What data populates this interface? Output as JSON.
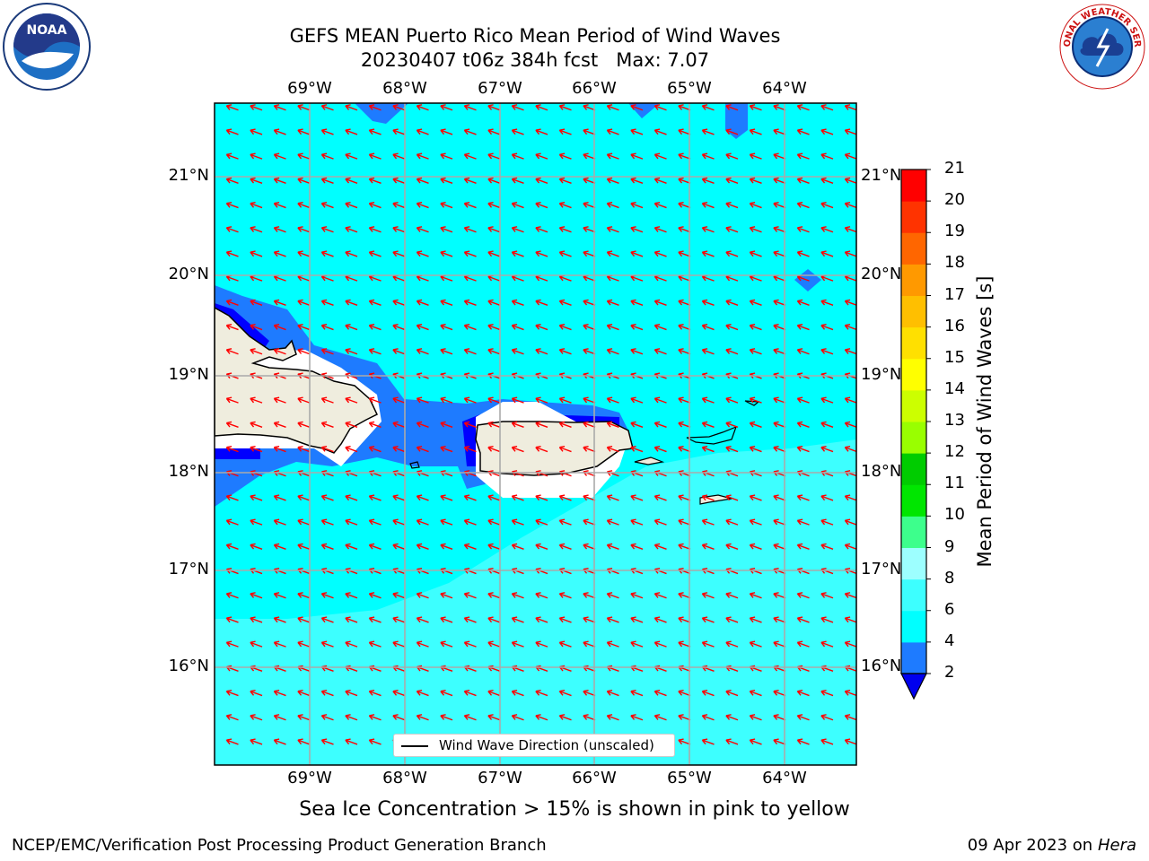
{
  "title_line1": "GEFS MEAN Puerto Rico Mean Period of Wind Waves",
  "title_line2": "20230407 t06z 384h fcst   Max: 7.07",
  "lon_labels": [
    "69°W",
    "68°W",
    "67°W",
    "66°W",
    "65°W",
    "64°W"
  ],
  "lat_labels": [
    "21°N",
    "20°N",
    "19°N",
    "18°N",
    "17°N",
    "16°N"
  ],
  "colorbar": {
    "label": "Mean Period of Wind Waves [s]",
    "ticks": [
      "2",
      "4",
      "6",
      "8",
      "9",
      "10",
      "11",
      "12",
      "13",
      "14",
      "15",
      "16",
      "17",
      "18",
      "19",
      "20",
      "21"
    ],
    "colors": [
      "#0000ff",
      "#1e7bff",
      "#00ffff",
      "#3dffff",
      "#9dffff",
      "#3dff8c",
      "#00e600",
      "#00cc00",
      "#99ff00",
      "#ccff00",
      "#ffff00",
      "#ffe000",
      "#ffbf00",
      "#ff9900",
      "#ff6600",
      "#ff3300",
      "#ff0000"
    ],
    "extend_color": "#0000ee"
  },
  "field_colors": {
    "dark_blue": "#0000ff",
    "mid_blue": "#1e7bff",
    "cyan": "#00ffff",
    "light_cyan": "#3dffff",
    "land": "#efedde",
    "arrow": "#ff0000"
  },
  "legend_text": "Wind Wave Direction (unscaled)",
  "note": "Sea Ice Concentration > 15% is shown in pink to yellow",
  "footer_left": "NCEP/EMC/Verification Post Processing Product Generation Branch",
  "footer_right_prefix": "09 Apr 2023 on ",
  "footer_right_host": "Hera",
  "logos": {
    "noaa": "NOAA",
    "nws": "NATIONAL WEATHER SERVICE"
  }
}
